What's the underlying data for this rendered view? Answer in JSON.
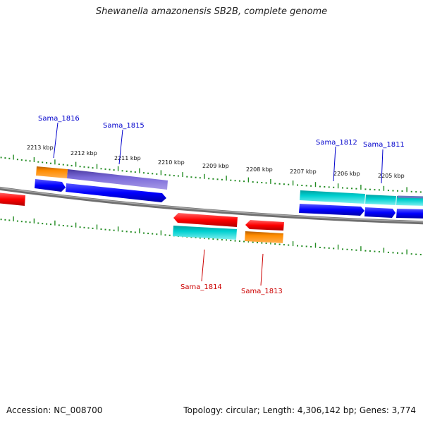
{
  "title": "Shewanella amazonensis SB2B, complete genome",
  "footer": {
    "accession": "Accession: NC_008700",
    "summary": "Topology: circular; Length: 4,306,142 bp; Genes: 3,774"
  },
  "colors": {
    "backbone": "#808080",
    "ticks": "#228B22",
    "label_forward": "#0000CC",
    "label_reverse": "#CC0000",
    "gene_red": "#ff0000",
    "gene_blue": "#0000ff",
    "gene_orange": "#ff8c00",
    "gene_cyan": "#00cccc",
    "gene_purple": "#6a5acd"
  },
  "scale_labels": [
    "2213 kbp",
    "2212 kbp",
    "2211 kbp",
    "2210 kbp",
    "2209 kbp",
    "2208 kbp",
    "2207 kbp",
    "2206 kbp",
    "2205 kbp"
  ],
  "gene_labels": {
    "forward": [
      "Sama_1816",
      "Sama_1815",
      "Sama_1812",
      "Sama_1811"
    ],
    "reverse": [
      "Sama_1814",
      "Sama_1813"
    ]
  }
}
